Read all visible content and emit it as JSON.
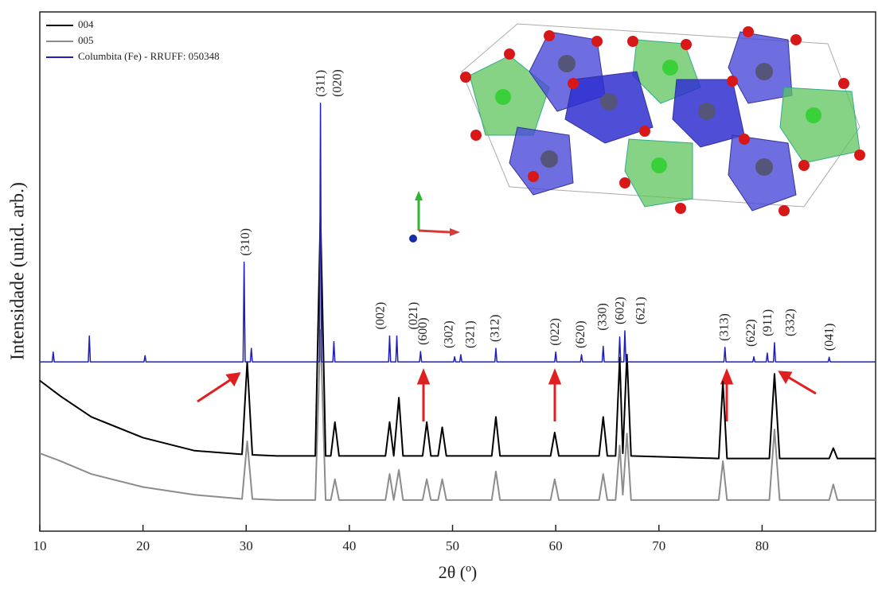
{
  "chart_data": {
    "type": "line",
    "xlabel": "2θ (º)",
    "ylabel": "Intensidade (unid. arb.)",
    "xlim": [
      10,
      91
    ],
    "xticks": [
      10,
      20,
      30,
      40,
      50,
      60,
      70,
      80
    ],
    "ylim": [
      0,
      100
    ],
    "legend": "upper left",
    "series": [
      {
        "name": "004",
        "color": "#000000",
        "x": [
          10,
          12,
          15,
          20,
          25,
          29.6,
          30.1,
          30.6,
          33,
          36.7,
          37.2,
          37.7,
          38.2,
          38.6,
          39,
          41,
          43.5,
          43.9,
          44.3,
          44.8,
          45.2,
          47.1,
          47.5,
          47.9,
          48.6,
          49,
          49.4,
          53.8,
          54.2,
          54.6,
          59.5,
          59.9,
          60.3,
          64.2,
          64.6,
          65,
          65.8,
          66.2,
          66.5,
          66.9,
          67.3,
          75.8,
          76.2,
          76.6,
          80.7,
          81.2,
          81.7,
          86.5,
          86.9,
          87.3,
          91
        ],
        "values": [
          29,
          26,
          22,
          18,
          15.5,
          14.8,
          32.6,
          14.7,
          14.5,
          14.5,
          61,
          14.5,
          14.5,
          21,
          14.5,
          14.5,
          14.5,
          21,
          14.5,
          25.7,
          14.5,
          14.5,
          21,
          14.5,
          14.5,
          20,
          14.5,
          14.5,
          22,
          14.5,
          14.5,
          19,
          14.5,
          14.5,
          22,
          14.5,
          14.5,
          33.4,
          15,
          34,
          14.5,
          14,
          28.8,
          14,
          14,
          30.3,
          14,
          14,
          16,
          14,
          14
        ]
      },
      {
        "name": "005",
        "color": "#8c8c8c",
        "x": [
          10,
          12,
          15,
          20,
          25,
          29.6,
          30.1,
          30.6,
          33,
          36.7,
          37.2,
          37.7,
          38.2,
          38.6,
          39,
          41,
          43.5,
          43.9,
          44.3,
          44.8,
          45.2,
          47.1,
          47.5,
          47.9,
          48.6,
          49,
          49.4,
          53.8,
          54.2,
          54.6,
          59.5,
          59.9,
          60.3,
          64.2,
          64.6,
          65,
          65.8,
          66.2,
          66.5,
          66.9,
          67.3,
          75.8,
          76.2,
          76.6,
          80.7,
          81.2,
          81.7,
          86.5,
          86.9,
          87.3,
          91
        ],
        "values": [
          15,
          13.5,
          11,
          8.5,
          7,
          6.2,
          17.3,
          6.2,
          6,
          6,
          38.7,
          6,
          6,
          10,
          6,
          6,
          6,
          11,
          6,
          11.8,
          6,
          6,
          10,
          6,
          6,
          10,
          6,
          6,
          11.5,
          6,
          6,
          10,
          6,
          6,
          11,
          6,
          6,
          16.5,
          7,
          18.8,
          6,
          6,
          13.5,
          6,
          6,
          19.6,
          6,
          6,
          9,
          6,
          6
        ]
      },
      {
        "name": "Columbita (Fe) - RRUFF: 050348",
        "color": "#1f1fbf",
        "x": [
          10,
          11.2,
          11.3,
          11.4,
          14.7,
          14.8,
          14.9,
          20.1,
          20.2,
          20.3,
          29.7,
          29.8,
          29.9,
          30.4,
          30.5,
          30.6,
          37.1,
          37.2,
          37.3,
          38.4,
          38.5,
          38.6,
          43.8,
          43.9,
          44.0,
          44.5,
          44.6,
          44.7,
          46.8,
          46.9,
          47.0,
          50.1,
          50.2,
          50.3,
          50.7,
          50.8,
          50.9,
          54.1,
          54.2,
          54.3,
          59.9,
          60,
          60.1,
          62.4,
          62.5,
          62.6,
          64.5,
          64.6,
          64.7,
          66.1,
          66.2,
          66.3,
          66.6,
          66.7,
          66.8,
          76.3,
          76.4,
          76.5,
          79.1,
          79.2,
          79.3,
          80.4,
          80.5,
          80.6,
          81.1,
          81.2,
          81.3,
          86.4,
          86.5,
          86.6,
          91
        ],
        "values": [
          32.6,
          32.6,
          34.5,
          32.6,
          32.6,
          37.6,
          32.6,
          32.6,
          33.8,
          32.6,
          32.6,
          51.8,
          32.6,
          32.6,
          35.2,
          32.6,
          32.6,
          82.4,
          32.6,
          32.6,
          36.5,
          32.6,
          32.6,
          37.6,
          32.6,
          32.6,
          37.6,
          32.6,
          32.6,
          34.6,
          32.6,
          32.6,
          33.6,
          32.6,
          32.6,
          34,
          32.6,
          32.6,
          35.2,
          32.6,
          32.6,
          34.5,
          32.6,
          32.6,
          34,
          32.6,
          32.6,
          35.6,
          32.6,
          32.6,
          37.4,
          32.6,
          32.6,
          38.6,
          32.6,
          32.6,
          35.4,
          32.6,
          32.6,
          33.6,
          32.6,
          32.6,
          34.3,
          32.6,
          32.6,
          36.3,
          32.6,
          32.6,
          33.5,
          32.6,
          32.6
        ]
      }
    ],
    "annotations": [
      {
        "text": "(310)",
        "x": 30
      },
      {
        "text": "(311)",
        "x": 37.3
      },
      {
        "text": "(020)",
        "x": 38.9
      },
      {
        "text": "(002)",
        "x": 43.1
      },
      {
        "text": "(021)",
        "x": 46.3
      },
      {
        "text": "(600)",
        "x": 47.2
      },
      {
        "text": "(302)",
        "x": 49.7
      },
      {
        "text": "(321)",
        "x": 51.8
      },
      {
        "text": "(312)",
        "x": 54.2
      },
      {
        "text": "(022)",
        "x": 60
      },
      {
        "text": "(620)",
        "x": 62.5
      },
      {
        "text": "(330)",
        "x": 64.6
      },
      {
        "text": "(602)",
        "x": 66.3
      },
      {
        "text": "(621)",
        "x": 68.3
      },
      {
        "text": "(313)",
        "x": 76.4
      },
      {
        "text": "(622)",
        "x": 79
      },
      {
        "text": "(911)",
        "x": 80.6
      },
      {
        "text": "(332)",
        "x": 82.8
      },
      {
        "text": "(041)",
        "x": 86.6
      }
    ]
  }
}
